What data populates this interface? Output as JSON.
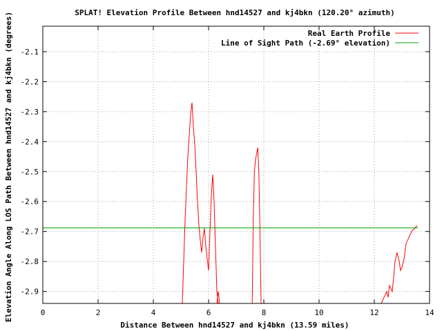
{
  "chart_data": {
    "type": "line",
    "title": "SPLAT! Elevation Profile Between hnd14527 and kj4bkn (120.20° azimuth)",
    "xlabel": "Distance Between hnd14527 and kj4bkn (13.59 miles)",
    "ylabel": "Elevation Angle Along LOS Path Between hnd14527 and kj4bkn (degrees)",
    "xlim": [
      0,
      14
    ],
    "ylim": [
      -2.94,
      -2.015
    ],
    "x_ticks": [
      "0",
      "2",
      "4",
      "6",
      "8",
      "10",
      "12",
      "14"
    ],
    "x_tick_values": [
      0,
      2,
      4,
      6,
      8,
      10,
      12,
      14
    ],
    "y_ticks": [
      "-2.1",
      "-2.2",
      "-2.3",
      "-2.4",
      "-2.5",
      "-2.6",
      "-2.7",
      "-2.8",
      "-2.9"
    ],
    "y_tick_values": [
      -2.1,
      -2.2,
      -2.3,
      -2.4,
      -2.5,
      -2.6,
      -2.7,
      -2.8,
      -2.9
    ],
    "grid": true,
    "legend_position": "top-right",
    "series": [
      {
        "name": "Real Earth Profile",
        "color": "#ff0000",
        "segments": [
          [
            [
              5.05,
              -2.94
            ],
            [
              5.1,
              -2.8
            ],
            [
              5.15,
              -2.66
            ],
            [
              5.2,
              -2.55
            ],
            [
              5.25,
              -2.45
            ],
            [
              5.3,
              -2.38
            ],
            [
              5.35,
              -2.31
            ],
            [
              5.4,
              -2.27
            ],
            [
              5.45,
              -2.35
            ],
            [
              5.5,
              -2.41
            ],
            [
              5.55,
              -2.5
            ],
            [
              5.6,
              -2.6
            ],
            [
              5.65,
              -2.68
            ],
            [
              5.7,
              -2.73
            ],
            [
              5.75,
              -2.77
            ],
            [
              5.8,
              -2.72
            ],
            [
              5.85,
              -2.69
            ],
            [
              5.9,
              -2.75
            ],
            [
              5.95,
              -2.79
            ],
            [
              6.0,
              -2.83
            ],
            [
              6.05,
              -2.7
            ],
            [
              6.1,
              -2.58
            ],
            [
              6.15,
              -2.51
            ],
            [
              6.2,
              -2.6
            ],
            [
              6.25,
              -2.75
            ],
            [
              6.3,
              -2.9
            ],
            [
              6.35,
              -2.94
            ]
          ],
          [
            [
              6.3,
              -2.94
            ],
            [
              6.35,
              -2.9
            ],
            [
              6.4,
              -2.94
            ]
          ],
          [
            [
              7.58,
              -2.94
            ],
            [
              7.62,
              -2.65
            ],
            [
              7.66,
              -2.5
            ],
            [
              7.7,
              -2.46
            ],
            [
              7.74,
              -2.44
            ],
            [
              7.78,
              -2.42
            ],
            [
              7.82,
              -2.5
            ],
            [
              7.86,
              -2.7
            ],
            [
              7.9,
              -2.94
            ]
          ],
          [
            [
              12.25,
              -2.94
            ],
            [
              12.35,
              -2.92
            ],
            [
              12.45,
              -2.9
            ],
            [
              12.5,
              -2.92
            ],
            [
              12.55,
              -2.88
            ],
            [
              12.65,
              -2.9
            ],
            [
              12.7,
              -2.85
            ],
            [
              12.75,
              -2.8
            ],
            [
              12.82,
              -2.77
            ],
            [
              12.9,
              -2.8
            ],
            [
              12.95,
              -2.83
            ],
            [
              13.0,
              -2.82
            ],
            [
              13.08,
              -2.79
            ],
            [
              13.15,
              -2.74
            ],
            [
              13.25,
              -2.72
            ],
            [
              13.35,
              -2.7
            ],
            [
              13.45,
              -2.69
            ],
            [
              13.55,
              -2.68
            ]
          ]
        ]
      },
      {
        "name": "Line of Sight Path (-2.69° elevation)",
        "color": "#00a000",
        "segments": [
          [
            [
              0,
              -2.688
            ],
            [
              13.59,
              -2.688
            ]
          ]
        ]
      }
    ]
  }
}
